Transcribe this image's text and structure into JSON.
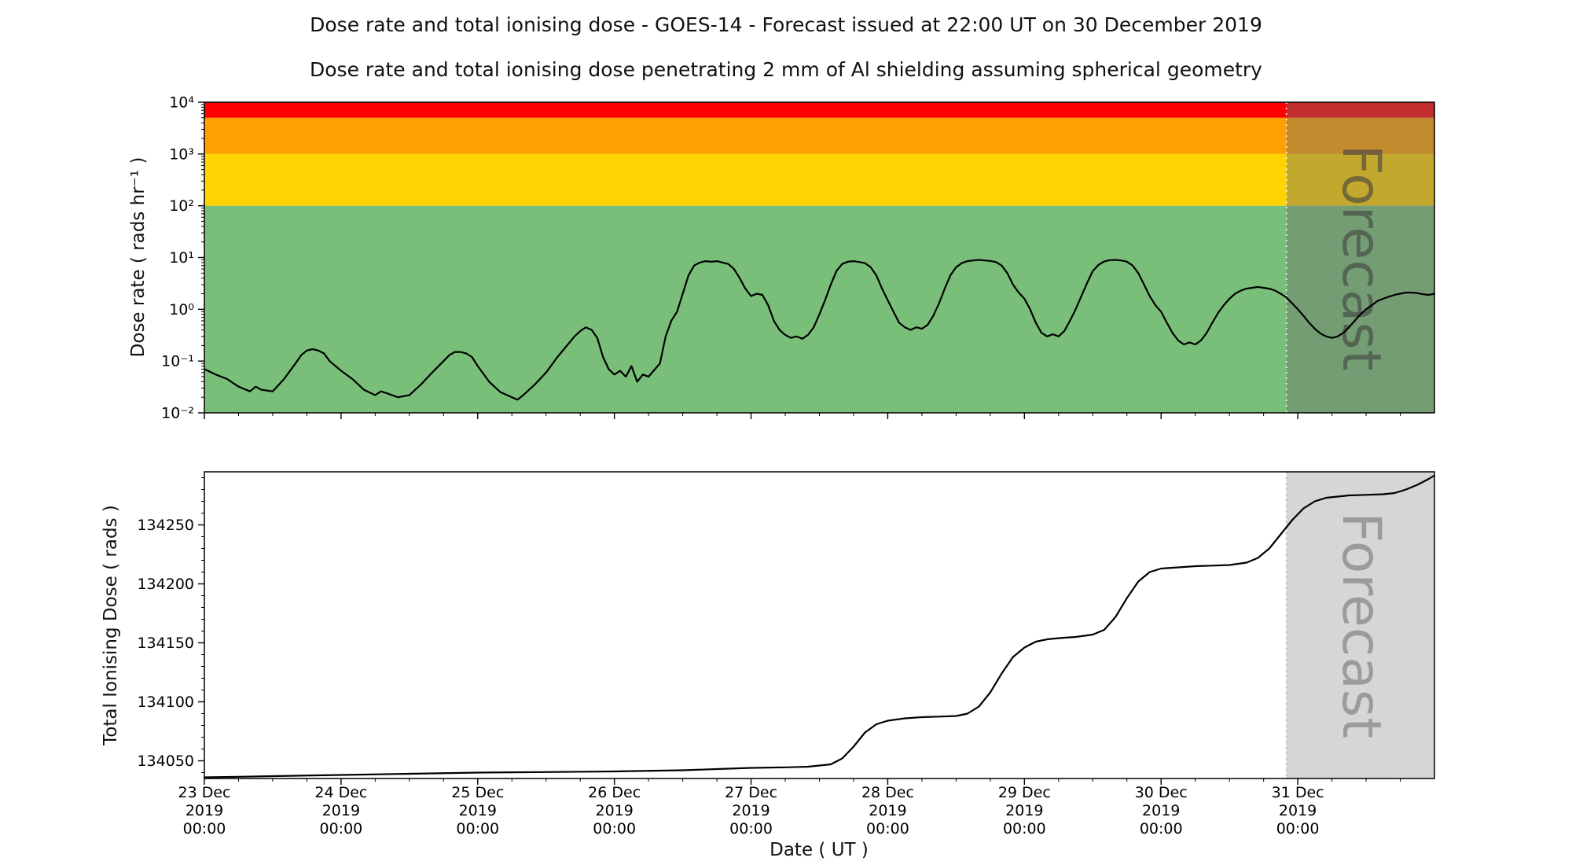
{
  "header": {
    "title": "Dose rate and total ionising dose - GOES-14 - Forecast issued at 22:00 UT on 30 December 2019",
    "subtitle": "Dose rate and total ionising dose penetrating 2 mm of Al shielding assuming spherical geometry"
  },
  "forecast": {
    "label": "Forecast",
    "start_hours": 190
  },
  "x_axis": {
    "label": "Date ( UT )",
    "range_hours": [
      0,
      216
    ],
    "tick_hours": [
      0,
      24,
      48,
      72,
      96,
      120,
      144,
      168,
      192
    ],
    "tick_labels": [
      [
        "23 Dec",
        "2019",
        "00:00"
      ],
      [
        "24 Dec",
        "2019",
        "00:00"
      ],
      [
        "25 Dec",
        "2019",
        "00:00"
      ],
      [
        "26 Dec",
        "2019",
        "00:00"
      ],
      [
        "27 Dec",
        "2019",
        "00:00"
      ],
      [
        "28 Dec",
        "2019",
        "00:00"
      ],
      [
        "29 Dec",
        "2019",
        "00:00"
      ],
      [
        "30 Dec",
        "2019",
        "00:00"
      ],
      [
        "31 Dec",
        "2019",
        "00:00"
      ]
    ]
  },
  "chart_data": [
    {
      "type": "line",
      "name": "dose-rate",
      "ylabel": "Dose rate ( rads hr⁻¹ )",
      "yscale": "log",
      "ylim": [
        0.01,
        10000
      ],
      "ytick_values": [
        10000,
        1000,
        100,
        10,
        1,
        0.1,
        0.01
      ],
      "ytick_labels": [
        "10⁴",
        "10³",
        "10²",
        "10¹",
        "10⁰",
        "10⁻¹",
        "10⁻²"
      ],
      "line_color": "#000000",
      "bands": [
        {
          "name": "red",
          "from": 5000,
          "to": 10000,
          "color": "#ff0000"
        },
        {
          "name": "orange",
          "from": 1000,
          "to": 5000,
          "color": "#ffa000"
        },
        {
          "name": "yellow",
          "from": 100,
          "to": 1000,
          "color": "#ffd400"
        },
        {
          "name": "green",
          "from": 0.01,
          "to": 100,
          "color": "#79bf79"
        }
      ],
      "forecast_overlay": {
        "fill": "#6e6e6e",
        "opacity": 0.42,
        "divider": "#ffffff",
        "text_color": "#3f3f3f",
        "text_opacity": 0.6
      },
      "points": [
        [
          0,
          0.07
        ],
        [
          2,
          0.055
        ],
        [
          4,
          0.045
        ],
        [
          6,
          0.032
        ],
        [
          8,
          0.026
        ],
        [
          9,
          0.032
        ],
        [
          10,
          0.028
        ],
        [
          12,
          0.026
        ],
        [
          14,
          0.045
        ],
        [
          16,
          0.09
        ],
        [
          17,
          0.13
        ],
        [
          18,
          0.16
        ],
        [
          19,
          0.17
        ],
        [
          20,
          0.16
        ],
        [
          21,
          0.14
        ],
        [
          22,
          0.1
        ],
        [
          24,
          0.065
        ],
        [
          26,
          0.045
        ],
        [
          28,
          0.028
        ],
        [
          30,
          0.022
        ],
        [
          31,
          0.026
        ],
        [
          32,
          0.024
        ],
        [
          34,
          0.02
        ],
        [
          36,
          0.022
        ],
        [
          38,
          0.035
        ],
        [
          40,
          0.06
        ],
        [
          42,
          0.1
        ],
        [
          43,
          0.13
        ],
        [
          44,
          0.15
        ],
        [
          45,
          0.15
        ],
        [
          46,
          0.14
        ],
        [
          47,
          0.12
        ],
        [
          48,
          0.08
        ],
        [
          50,
          0.04
        ],
        [
          52,
          0.025
        ],
        [
          54,
          0.02
        ],
        [
          55,
          0.018
        ],
        [
          56,
          0.022
        ],
        [
          58,
          0.035
        ],
        [
          60,
          0.06
        ],
        [
          62,
          0.12
        ],
        [
          64,
          0.22
        ],
        [
          65,
          0.3
        ],
        [
          66,
          0.38
        ],
        [
          67,
          0.45
        ],
        [
          68,
          0.4
        ],
        [
          69,
          0.28
        ],
        [
          70,
          0.12
        ],
        [
          71,
          0.07
        ],
        [
          72,
          0.055
        ],
        [
          73,
          0.065
        ],
        [
          74,
          0.05
        ],
        [
          75,
          0.08
        ],
        [
          76,
          0.04
        ],
        [
          77,
          0.055
        ],
        [
          78,
          0.05
        ],
        [
          80,
          0.09
        ],
        [
          81,
          0.3
        ],
        [
          82,
          0.6
        ],
        [
          83,
          0.9
        ],
        [
          84,
          2
        ],
        [
          85,
          4.5
        ],
        [
          86,
          7
        ],
        [
          87,
          8
        ],
        [
          88,
          8.5
        ],
        [
          89,
          8.3
        ],
        [
          90,
          8.5
        ],
        [
          91,
          8
        ],
        [
          92,
          7.5
        ],
        [
          93,
          6
        ],
        [
          94,
          4
        ],
        [
          95,
          2.5
        ],
        [
          96,
          1.8
        ],
        [
          97,
          2
        ],
        [
          98,
          1.9
        ],
        [
          99,
          1.2
        ],
        [
          100,
          0.6
        ],
        [
          101,
          0.4
        ],
        [
          102,
          0.32
        ],
        [
          103,
          0.28
        ],
        [
          104,
          0.3
        ],
        [
          105,
          0.27
        ],
        [
          106,
          0.32
        ],
        [
          107,
          0.45
        ],
        [
          108,
          0.8
        ],
        [
          109,
          1.5
        ],
        [
          110,
          3
        ],
        [
          111,
          5.5
        ],
        [
          112,
          7.5
        ],
        [
          113,
          8.3
        ],
        [
          114,
          8.5
        ],
        [
          115,
          8.2
        ],
        [
          116,
          7.8
        ],
        [
          117,
          6.5
        ],
        [
          118,
          4.5
        ],
        [
          119,
          2.5
        ],
        [
          120,
          1.5
        ],
        [
          121,
          0.9
        ],
        [
          122,
          0.55
        ],
        [
          123,
          0.45
        ],
        [
          124,
          0.4
        ],
        [
          125,
          0.45
        ],
        [
          126,
          0.42
        ],
        [
          127,
          0.5
        ],
        [
          128,
          0.75
        ],
        [
          129,
          1.3
        ],
        [
          130,
          2.5
        ],
        [
          131,
          4.5
        ],
        [
          132,
          6.5
        ],
        [
          133,
          7.8
        ],
        [
          134,
          8.5
        ],
        [
          135,
          8.8
        ],
        [
          136,
          9
        ],
        [
          137,
          8.8
        ],
        [
          138,
          8.6
        ],
        [
          139,
          8.2
        ],
        [
          140,
          7
        ],
        [
          141,
          5
        ],
        [
          142,
          3
        ],
        [
          143,
          2.1
        ],
        [
          144,
          1.6
        ],
        [
          145,
          1
        ],
        [
          146,
          0.55
        ],
        [
          147,
          0.35
        ],
        [
          148,
          0.3
        ],
        [
          149,
          0.33
        ],
        [
          150,
          0.3
        ],
        [
          151,
          0.38
        ],
        [
          152,
          0.6
        ],
        [
          153,
          1
        ],
        [
          154,
          1.8
        ],
        [
          155,
          3.2
        ],
        [
          156,
          5.5
        ],
        [
          157,
          7.2
        ],
        [
          158,
          8.4
        ],
        [
          159,
          8.9
        ],
        [
          160,
          9
        ],
        [
          161,
          8.8
        ],
        [
          162,
          8.3
        ],
        [
          163,
          7
        ],
        [
          164,
          5
        ],
        [
          165,
          3
        ],
        [
          166,
          1.8
        ],
        [
          167,
          1.2
        ],
        [
          168,
          0.9
        ],
        [
          169,
          0.55
        ],
        [
          170,
          0.35
        ],
        [
          171,
          0.25
        ],
        [
          172,
          0.21
        ],
        [
          173,
          0.23
        ],
        [
          174,
          0.21
        ],
        [
          175,
          0.25
        ],
        [
          176,
          0.35
        ],
        [
          177,
          0.55
        ],
        [
          178,
          0.85
        ],
        [
          179,
          1.2
        ],
        [
          180,
          1.6
        ],
        [
          181,
          2
        ],
        [
          182,
          2.3
        ],
        [
          183,
          2.5
        ],
        [
          184,
          2.6
        ],
        [
          185,
          2.7
        ],
        [
          186,
          2.6
        ],
        [
          187,
          2.5
        ],
        [
          188,
          2.3
        ],
        [
          189,
          2
        ],
        [
          190,
          1.7
        ],
        [
          191,
          1.3
        ],
        [
          192,
          1
        ],
        [
          193,
          0.75
        ],
        [
          194,
          0.55
        ],
        [
          195,
          0.42
        ],
        [
          196,
          0.34
        ],
        [
          197,
          0.3
        ],
        [
          198,
          0.28
        ],
        [
          199,
          0.3
        ],
        [
          200,
          0.35
        ],
        [
          201,
          0.45
        ],
        [
          202,
          0.6
        ],
        [
          203,
          0.8
        ],
        [
          204,
          1
        ],
        [
          205,
          1.2
        ],
        [
          206,
          1.45
        ],
        [
          207,
          1.6
        ],
        [
          208,
          1.75
        ],
        [
          209,
          1.9
        ],
        [
          210,
          2
        ],
        [
          211,
          2.1
        ],
        [
          212,
          2.1
        ],
        [
          213,
          2.05
        ],
        [
          214,
          1.95
        ],
        [
          215,
          1.9
        ],
        [
          216,
          2
        ]
      ]
    },
    {
      "type": "line",
      "name": "total-ionising-dose",
      "ylabel": "Total Ionising Dose ( rads )",
      "yscale": "linear",
      "ylim": [
        134035,
        134295
      ],
      "ytick_values": [
        134050,
        134100,
        134150,
        134200,
        134250
      ],
      "ytick_labels": [
        "134050",
        "134100",
        "134150",
        "134200",
        "134250"
      ],
      "line_color": "#000000",
      "bands": [],
      "forecast_overlay": {
        "fill": "#d6d6d6",
        "opacity": 1,
        "divider": "#b0b0b0",
        "text_color": "#9b9b9b",
        "text_opacity": 1
      },
      "points": [
        [
          0,
          134036
        ],
        [
          6,
          134036.5
        ],
        [
          12,
          134037
        ],
        [
          24,
          134038
        ],
        [
          36,
          134039
        ],
        [
          48,
          134040
        ],
        [
          60,
          134040.5
        ],
        [
          72,
          134041
        ],
        [
          84,
          134042
        ],
        [
          90,
          134043
        ],
        [
          96,
          134044
        ],
        [
          102,
          134044.5
        ],
        [
          106,
          134045
        ],
        [
          110,
          134047
        ],
        [
          112,
          134052
        ],
        [
          114,
          134062
        ],
        [
          116,
          134074
        ],
        [
          118,
          134081
        ],
        [
          120,
          134084
        ],
        [
          123,
          134086
        ],
        [
          126,
          134087
        ],
        [
          129,
          134087.5
        ],
        [
          132,
          134088
        ],
        [
          134,
          134090
        ],
        [
          136,
          134096
        ],
        [
          138,
          134108
        ],
        [
          140,
          134124
        ],
        [
          142,
          134138
        ],
        [
          144,
          134146
        ],
        [
          146,
          134151
        ],
        [
          148,
          134153
        ],
        [
          150,
          134154
        ],
        [
          153,
          134155
        ],
        [
          156,
          134157
        ],
        [
          158,
          134161
        ],
        [
          160,
          134172
        ],
        [
          162,
          134188
        ],
        [
          164,
          134202
        ],
        [
          166,
          134210
        ],
        [
          168,
          134213
        ],
        [
          171,
          134214
        ],
        [
          174,
          134215
        ],
        [
          177,
          134215.5
        ],
        [
          180,
          134216
        ],
        [
          183,
          134218
        ],
        [
          185,
          134222
        ],
        [
          187,
          134230
        ],
        [
          189,
          134242
        ],
        [
          191,
          134254
        ],
        [
          193,
          134264
        ],
        [
          195,
          134270
        ],
        [
          197,
          134273
        ],
        [
          199,
          134274
        ],
        [
          201,
          134275
        ],
        [
          204,
          134275.5
        ],
        [
          207,
          134276
        ],
        [
          209,
          134277
        ],
        [
          211,
          134280
        ],
        [
          213,
          134284
        ],
        [
          215,
          134289
        ],
        [
          216,
          134292
        ]
      ]
    }
  ]
}
